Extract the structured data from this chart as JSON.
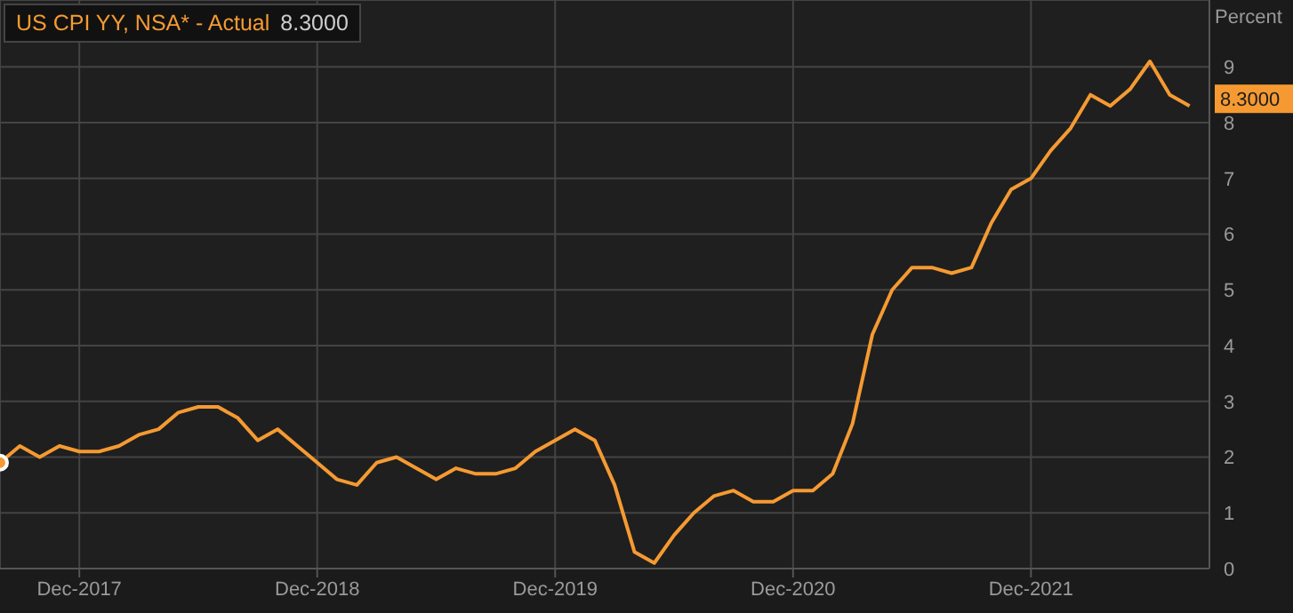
{
  "chart_data": {
    "type": "line",
    "ylabel": "Percent",
    "x": [
      "2017-08",
      "2017-09",
      "2017-10",
      "2017-11",
      "2017-12",
      "2018-01",
      "2018-02",
      "2018-03",
      "2018-04",
      "2018-05",
      "2018-06",
      "2018-07",
      "2018-08",
      "2018-09",
      "2018-10",
      "2018-11",
      "2018-12",
      "2019-01",
      "2019-02",
      "2019-03",
      "2019-04",
      "2019-05",
      "2019-06",
      "2019-07",
      "2019-08",
      "2019-09",
      "2019-10",
      "2019-11",
      "2019-12",
      "2020-01",
      "2020-02",
      "2020-03",
      "2020-04",
      "2020-05",
      "2020-06",
      "2020-07",
      "2020-08",
      "2020-09",
      "2020-10",
      "2020-11",
      "2020-12",
      "2021-01",
      "2021-02",
      "2021-03",
      "2021-04",
      "2021-05",
      "2021-06",
      "2021-07",
      "2021-08",
      "2021-09",
      "2021-10",
      "2021-11",
      "2021-12",
      "2022-01",
      "2022-02",
      "2022-03",
      "2022-04",
      "2022-05",
      "2022-06",
      "2022-07",
      "2022-08"
    ],
    "series": [
      {
        "name": "US CPI YY, NSA* - Actual",
        "color": "#f59a32",
        "values": [
          1.9,
          2.2,
          2.0,
          2.2,
          2.1,
          2.1,
          2.2,
          2.4,
          2.5,
          2.8,
          2.9,
          2.9,
          2.7,
          2.3,
          2.5,
          2.2,
          1.9,
          1.6,
          1.5,
          1.9,
          2.0,
          1.8,
          1.6,
          1.8,
          1.7,
          1.7,
          1.8,
          2.1,
          2.3,
          2.5,
          2.3,
          1.5,
          0.3,
          0.1,
          0.6,
          1.0,
          1.3,
          1.4,
          1.2,
          1.2,
          1.4,
          1.4,
          1.7,
          2.6,
          4.2,
          5.0,
          5.4,
          5.4,
          5.3,
          5.4,
          6.2,
          6.8,
          7.0,
          7.5,
          7.9,
          8.5,
          8.3,
          8.6,
          9.1,
          8.5,
          8.3
        ],
        "value_labels": [
          null,
          null,
          null,
          null,
          null,
          null,
          null,
          null,
          null,
          null,
          null,
          null,
          null,
          null,
          null,
          null,
          null,
          null,
          null,
          null,
          null,
          null,
          null,
          null,
          null,
          null,
          null,
          null,
          null,
          null,
          null,
          null,
          null,
          null,
          null,
          null,
          null,
          null,
          null,
          null,
          null,
          null,
          null,
          null,
          null,
          null,
          null,
          null,
          null,
          null,
          null,
          null,
          null,
          null,
          null,
          null,
          null,
          null,
          null,
          null,
          "8.3000"
        ]
      }
    ],
    "xlim": [
      "2017-08",
      "2022-09"
    ],
    "xticks": [
      {
        "value": "2017-12",
        "label": "Dec-2017"
      },
      {
        "value": "2018-12",
        "label": "Dec-2018"
      },
      {
        "value": "2019-12",
        "label": "Dec-2019"
      },
      {
        "value": "2020-12",
        "label": "Dec-2020"
      },
      {
        "value": "2021-12",
        "label": "Dec-2021"
      }
    ],
    "ylim": [
      0,
      10.2
    ],
    "yticks": [
      0,
      1,
      2,
      3,
      4,
      5,
      6,
      7,
      8,
      9
    ],
    "grid": true,
    "legend": "top left",
    "marker": "none",
    "line_style": "solid"
  }
}
